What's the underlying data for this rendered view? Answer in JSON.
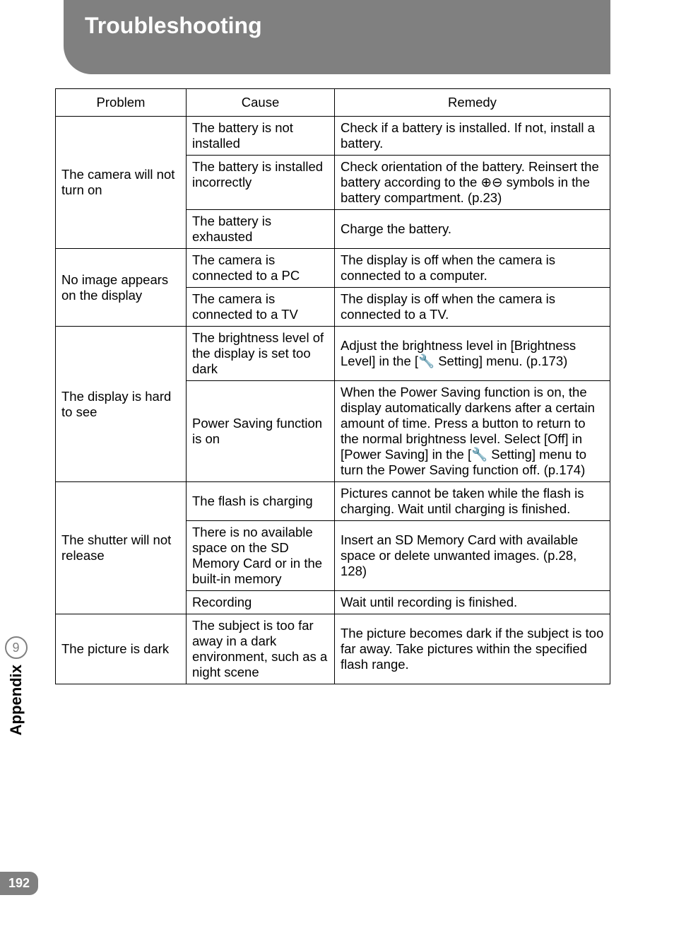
{
  "header": {
    "title": "Troubleshooting"
  },
  "table": {
    "headers": {
      "problem": "Problem",
      "cause": "Cause",
      "remedy": "Remedy"
    },
    "rows": [
      {
        "problem": "The camera will not turn on",
        "problem_rowspan": 3,
        "items": [
          {
            "cause": "The battery is not installed",
            "remedy": "Check if a battery is installed. If not, install a battery."
          },
          {
            "cause": "The battery is installed incorrectly",
            "remedy": "Check orientation of the battery. Reinsert the battery according to the ⊕⊖ symbols in the battery compartment. (p.23)"
          },
          {
            "cause": "The battery is exhausted",
            "remedy": "Charge the battery."
          }
        ]
      },
      {
        "problem": "No image appears on the display",
        "problem_rowspan": 2,
        "items": [
          {
            "cause": "The camera is connected to a PC",
            "remedy": "The display is off when the camera is connected to a computer."
          },
          {
            "cause": "The camera is connected to a TV",
            "remedy": "The display is off when the camera is connected to a TV."
          }
        ]
      },
      {
        "problem": "The display is hard to see",
        "problem_rowspan": 2,
        "items": [
          {
            "cause": "The brightness level of the display is set too dark",
            "remedy": "Adjust the brightness level in [Brightness Level] in the [🔧 Setting] menu. (p.173)"
          },
          {
            "cause": "Power Saving function is on",
            "remedy": "When the Power Saving function is on, the display automatically darkens after a certain amount of time. Press a button to return to the normal brightness level. Select [Off] in [Power Saving] in the [🔧 Setting] menu to turn the Power Saving function off. (p.174)"
          }
        ]
      },
      {
        "problem": "The shutter will not release",
        "problem_rowspan": 3,
        "items": [
          {
            "cause": "The flash is charging",
            "remedy": "Pictures cannot be taken while the flash is charging. Wait until charging is finished."
          },
          {
            "cause": "There is no available space on the SD Memory Card or in the built-in memory",
            "remedy": "Insert an SD Memory Card with available space or delete unwanted images. (p.28, 128)"
          },
          {
            "cause": "Recording",
            "remedy": "Wait until recording is finished."
          }
        ]
      },
      {
        "problem": "The picture is dark",
        "problem_rowspan": 1,
        "items": [
          {
            "cause": "The subject is too far away in a dark environment, such as a night scene",
            "remedy": "The picture becomes dark if the subject is too far away. Take pictures within the specified flash range."
          }
        ]
      }
    ]
  },
  "sidebar": {
    "section_number": "9",
    "section_label": "Appendix"
  },
  "page_number": "192",
  "colors": {
    "header_bg": "#808080",
    "header_text": "#ffffff",
    "border": "#000000",
    "sidebar_border": "#808080",
    "page_number_bg": "#808080"
  }
}
